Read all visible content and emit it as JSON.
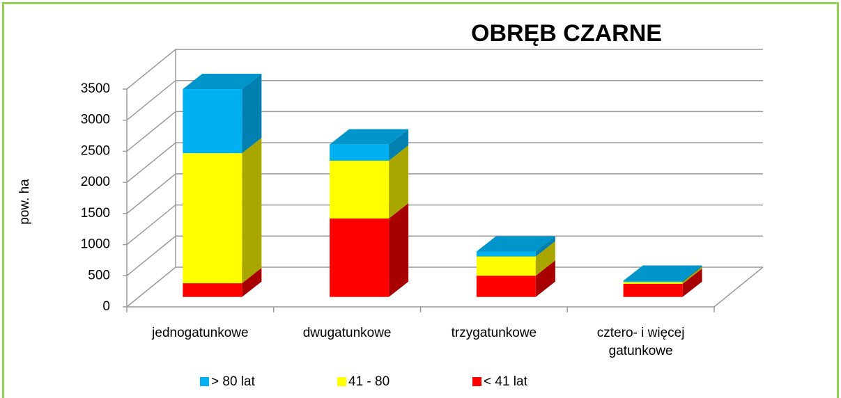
{
  "chart_data": {
    "type": "bar3d_stacked",
    "title": "OBRĘB CZARNE",
    "y_label": "pow. ha",
    "categories": [
      "jednogatunkowe",
      "dwugatunkowe",
      "trzygatunkowe",
      "cztero- i więcej gatunkowe"
    ],
    "series": [
      {
        "name": "< 41 lat",
        "color": "#ff0000",
        "side": "#a80000",
        "top": "#c80000",
        "values": [
          220,
          1260,
          340,
          210
        ]
      },
      {
        "name": "41 - 80",
        "color": "#ffff00",
        "side": "#aaa600",
        "top": "#d8d400",
        "values": [
          2090,
          930,
          310,
          30
        ]
      },
      {
        "name": "> 80 lat",
        "color": "#00b0f0",
        "side": "#0080b0",
        "top": "#0096cc",
        "values": [
          1030,
          260,
          80,
          20
        ]
      }
    ],
    "ylim": [
      0,
      3500
    ],
    "yticks": [
      0,
      500,
      1000,
      1500,
      2000,
      2500,
      3000,
      3500
    ],
    "grid": true
  }
}
